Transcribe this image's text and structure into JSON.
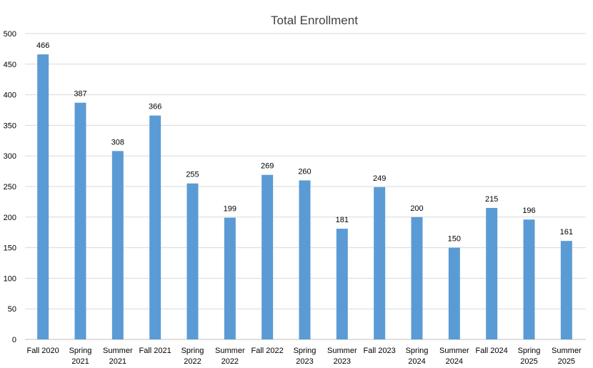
{
  "chart_data": {
    "type": "bar",
    "title": "Total Enrollment",
    "xlabel": "",
    "ylabel": "",
    "ylim": [
      0,
      500
    ],
    "yticks": [
      0,
      50,
      100,
      150,
      200,
      250,
      300,
      350,
      400,
      450,
      500
    ],
    "grid": true,
    "legend": "none",
    "bar_color": "#5b9bd5",
    "categories": [
      "Fall 2020",
      "Spring 2021",
      "Summer 2021",
      "Fall 2021",
      "Spring 2022",
      "Summer 2022",
      "Fall 2022",
      "Spring 2023",
      "Summer 2023",
      "Fall 2023",
      "Spring 2024",
      "Summer 2024",
      "Fall 2024",
      "Spring 2025",
      "Summer 2025"
    ],
    "values": [
      466,
      387,
      308,
      366,
      255,
      199,
      269,
      260,
      181,
      249,
      200,
      150,
      215,
      196,
      161
    ]
  }
}
